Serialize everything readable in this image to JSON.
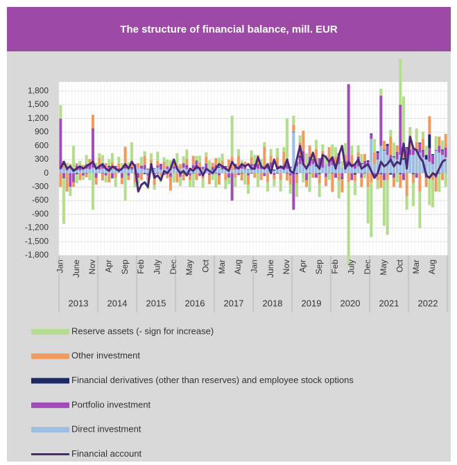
{
  "chart_data": {
    "type": "bar",
    "title": "The structure of financial balance, mill. EUR",
    "categories": [
      "Jan",
      null,
      null,
      null,
      null,
      "June",
      null,
      null,
      null,
      null,
      "Nov",
      null,
      null,
      null,
      null,
      "Apr",
      null,
      null,
      null,
      null,
      "Sep",
      null,
      null,
      null,
      null,
      "Feb",
      null,
      null,
      null,
      null,
      "July",
      null,
      null,
      null,
      null,
      "Dec",
      null,
      null,
      null,
      null,
      "May",
      null,
      null,
      null,
      null,
      "Oct",
      null,
      null,
      null,
      null,
      "Mar",
      null,
      null,
      null,
      null,
      "Aug",
      null,
      null,
      null,
      null,
      "Jan",
      null,
      null,
      null,
      null,
      "June",
      null,
      null,
      null,
      null,
      "Nov",
      null,
      null,
      null,
      null,
      "Apr",
      null,
      null,
      null,
      null,
      "Sep",
      null,
      null,
      null,
      null,
      "Feb",
      null,
      null,
      null,
      null,
      "July",
      null,
      null,
      null,
      null,
      "Dec",
      null,
      null,
      null,
      null,
      "May",
      null,
      null,
      null,
      null,
      "Oct",
      null,
      null,
      null,
      null,
      "Mar",
      null,
      null,
      null,
      null,
      "Aug",
      null,
      null,
      null,
      null
    ],
    "years": [
      "2013",
      "2014",
      "2015",
      "2016",
      "2017",
      "2018",
      "2019",
      "2020",
      "2021",
      "2022"
    ],
    "ylim": [
      -1800,
      2000
    ],
    "yticks": [
      {
        "value": -1800,
        "label": "-1,800"
      },
      {
        "value": -1500,
        "label": "-1,500"
      },
      {
        "value": -1200,
        "label": "-1,200"
      },
      -900,
      -600,
      -300,
      0,
      300,
      600,
      900,
      {
        "value": 1200,
        "label": "1,200"
      },
      {
        "value": 1500,
        "label": "1,500"
      },
      {
        "value": 1800,
        "label": "1,800"
      }
    ],
    "grid": true,
    "series": [
      {
        "name": "Direct investment",
        "color": "#9dbde3",
        "values": [
          80,
          120,
          60,
          100,
          90,
          70,
          60,
          80,
          100,
          90,
          120,
          80,
          80,
          100,
          120,
          60,
          90,
          100,
          80,
          120,
          100,
          90,
          80,
          100,
          120,
          100,
          80,
          90,
          60,
          100,
          120,
          80,
          100,
          90,
          70,
          100,
          80,
          100,
          120,
          90,
          60,
          100,
          80,
          120,
          90,
          100,
          80,
          60,
          100,
          120,
          80,
          90,
          100,
          60,
          80,
          120,
          100,
          90,
          80,
          100,
          120,
          100,
          90,
          80,
          100,
          120,
          60,
          90,
          100,
          80,
          100,
          120,
          900,
          150,
          200,
          180,
          120,
          160,
          200,
          150,
          180,
          120,
          200,
          150,
          180,
          150,
          200,
          120,
          100,
          150,
          180,
          100,
          150,
          200,
          120,
          150,
          750,
          200,
          300,
          600,
          500,
          400,
          300,
          350,
          300,
          400,
          300,
          350,
          400,
          400,
          500,
          450,
          350,
          300,
          250,
          200,
          500,
          450,
          400,
          350
        ]
      },
      {
        "name": "Portfolio investment",
        "color": "#a24cb8",
        "values": [
          1100,
          -100,
          50,
          -300,
          -200,
          100,
          50,
          -50,
          100,
          80,
          850,
          -100,
          50,
          100,
          -50,
          80,
          -100,
          50,
          30,
          -80,
          60,
          -50,
          40,
          100,
          -100,
          50,
          100,
          -50,
          80,
          -60,
          50,
          100,
          -40,
          60,
          -80,
          50,
          50,
          -80,
          100,
          60,
          -50,
          80,
          200,
          -60,
          50,
          100,
          -40,
          60,
          80,
          -50,
          100,
          60,
          -80,
          -600,
          100,
          -40,
          80,
          60,
          -50,
          100,
          60,
          100,
          60,
          -50,
          80,
          100,
          -40,
          60,
          50,
          80,
          100,
          -50,
          -800,
          100,
          150,
          300,
          -150,
          200,
          100,
          -100,
          150,
          200,
          -80,
          100,
          150,
          -100,
          200,
          -100,
          150,
          1800,
          -150,
          100,
          200,
          -100,
          150,
          100,
          100,
          -100,
          150,
          1100,
          -150,
          200,
          100,
          -100,
          150,
          1100,
          -150,
          200,
          100,
          150,
          -100,
          200,
          150,
          -100,
          300,
          200,
          -100,
          150,
          100,
          200
        ]
      },
      {
        "name": "Financial derivatives (other than reserves) and employee stock options",
        "color": "#1b2a66",
        "values": [
          10,
          -10,
          20,
          0,
          10,
          -20,
          10,
          0,
          -10,
          20,
          10,
          0,
          10,
          -10,
          0,
          20,
          -10,
          10,
          0,
          -10,
          20,
          0,
          10,
          -10,
          0,
          10,
          -20,
          10,
          0,
          10,
          -10,
          20,
          0,
          -10,
          10,
          0,
          10,
          0,
          -10,
          20,
          10,
          -10,
          0,
          10,
          -20,
          10,
          0,
          10,
          -10,
          20,
          0,
          10,
          -10,
          0,
          20,
          10,
          -10,
          0,
          10,
          -10,
          20,
          0,
          10,
          -10,
          0,
          10,
          20,
          -10,
          0,
          10,
          -10,
          20,
          10,
          -20,
          30,
          0,
          20,
          -10,
          10,
          30,
          -20,
          10,
          0,
          20,
          -10,
          20,
          30,
          -20,
          10,
          0,
          20,
          -30,
          10,
          20,
          -10,
          30,
          20,
          -10,
          30,
          -20,
          10,
          40,
          -30,
          20,
          10,
          -20,
          30,
          20,
          10,
          -20,
          30,
          20,
          10,
          100,
          300,
          20,
          10,
          -10,
          20,
          10
        ]
      },
      {
        "name": "Other investment",
        "color": "#f09a60",
        "values": [
          -300,
          150,
          -400,
          100,
          -100,
          50,
          -150,
          100,
          -80,
          120,
          300,
          -150,
          200,
          -150,
          100,
          -200,
          150,
          -100,
          100,
          -150,
          400,
          -100,
          150,
          -200,
          100,
          -150,
          200,
          -100,
          150,
          -200,
          100,
          -50,
          150,
          -100,
          -300,
          150,
          -200,
          100,
          -150,
          150,
          -100,
          200,
          -150,
          100,
          -100,
          150,
          -200,
          100,
          150,
          -200,
          100,
          -150,
          200,
          300,
          -100,
          250,
          -150,
          100,
          -200,
          150,
          -100,
          200,
          -150,
          500,
          -200,
          150,
          -100,
          200,
          -150,
          300,
          -150,
          -200,
          150,
          -200,
          300,
          450,
          -150,
          250,
          -100,
          350,
          -200,
          150,
          -200,
          300,
          -400,
          200,
          -150,
          -300,
          150,
          -200,
          200,
          -150,
          100,
          -200,
          150,
          -300,
          -200,
          250,
          -150,
          -300,
          200,
          -150,
          400,
          -200,
          150,
          -300,
          250,
          -500,
          300,
          -200,
          150,
          -400,
          250,
          -200,
          400,
          -150,
          -300,
          200,
          -150,
          300
        ]
      },
      {
        "name": "Reserve assets (- sign for increase)",
        "color": "#b3df8c",
        "values": [
          300,
          -1000,
          100,
          -200,
          500,
          -200,
          150,
          -100,
          200,
          -150,
          -800,
          150,
          100,
          200,
          -150,
          150,
          200,
          -200,
          150,
          100,
          -600,
          150,
          400,
          -100,
          -150,
          200,
          100,
          -200,
          150,
          -100,
          200,
          -150,
          100,
          150,
          200,
          -200,
          300,
          -200,
          150,
          200,
          -150,
          -300,
          100,
          150,
          -200,
          100,
          200,
          -150,
          -300,
          200,
          150,
          -200,
          -150,
          900,
          -200,
          150,
          100,
          -250,
          -200,
          150,
          200,
          -300,
          150,
          100,
          -200,
          150,
          -150,
          200,
          -250,
          100,
          1000,
          -200,
          200,
          -300,
          150,
          -200,
          300,
          -400,
          100,
          200,
          -300,
          150,
          200,
          -150,
          300,
          200,
          -400,
          150,
          250,
          -1800,
          200,
          -300,
          150,
          200,
          -100,
          -800,
          -1200,
          300,
          -200,
          150,
          -1000,
          -1200,
          150,
          300,
          -200,
          1000,
          1100,
          -300,
          200,
          -500,
          300,
          -800,
          150,
          200,
          -700,
          -600,
          300,
          -400,
          200,
          -300
        ]
      }
    ],
    "line": {
      "name": "Financial account",
      "color": "#4a2a78",
      "values": [
        100,
        250,
        100,
        150,
        50,
        100,
        150,
        100,
        150,
        200,
        250,
        100,
        150,
        200,
        100,
        50,
        150,
        100,
        50,
        100,
        200,
        100,
        250,
        150,
        -400,
        -250,
        -200,
        -300,
        200,
        -100,
        -50,
        -150,
        50,
        0,
        100,
        300,
        100,
        0,
        50,
        -50,
        100,
        50,
        150,
        100,
        -50,
        100,
        50,
        0,
        100,
        200,
        150,
        100,
        50,
        250,
        150,
        100,
        200,
        150,
        200,
        100,
        100,
        350,
        150,
        100,
        200,
        0,
        300,
        100,
        150,
        100,
        300,
        50,
        0,
        300,
        600,
        200,
        100,
        250,
        450,
        200,
        100,
        400,
        350,
        250,
        350,
        100,
        400,
        600,
        100,
        250,
        150,
        200,
        300,
        100,
        150,
        200,
        50,
        -100,
        0,
        250,
        150,
        200,
        300,
        150,
        250,
        200,
        650,
        100,
        800,
        550,
        500,
        350,
        250,
        -50,
        -100,
        0,
        -50,
        100,
        250,
        300
      ]
    }
  }
}
